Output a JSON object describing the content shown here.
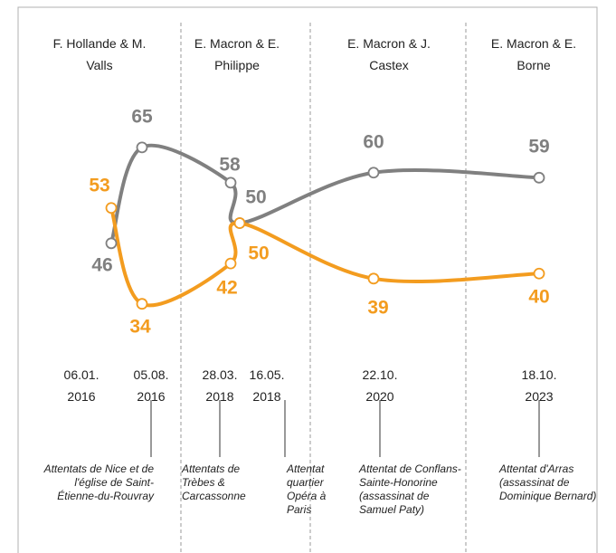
{
  "chart_data": {
    "type": "line",
    "periods": [
      "F. Hollande & M. Valls",
      "E. Macron & E. Philippe",
      "E. Macron & J. Castex",
      "E. Macron & E. Borne"
    ],
    "categories": [
      "06.01. 2016",
      "05.08. 2016",
      "28.03. 2018",
      "16.05. 2018",
      "22.10. 2020",
      "18.10. 2023"
    ],
    "series": [
      {
        "name": null,
        "color": "#808080",
        "values": [
          46,
          65,
          58,
          50,
          60,
          59
        ]
      },
      {
        "name": null,
        "color": "#f39c1f",
        "values": [
          53,
          34,
          42,
          50,
          39,
          40
        ]
      }
    ],
    "annotations": [
      "Attentats de Nice et de l'église de Saint-Étienne-du-Rouvray",
      "Attentats de Trèbes & Carcassonne",
      "Attentat quartier Opéra à Paris",
      "Attentat de Conflans-Sainte-Honorine (assassinat de Samuel Paty)",
      "Attentat d'Arras (assassinat de Dominique Bernard)"
    ],
    "ylim": [
      30,
      70
    ]
  }
}
